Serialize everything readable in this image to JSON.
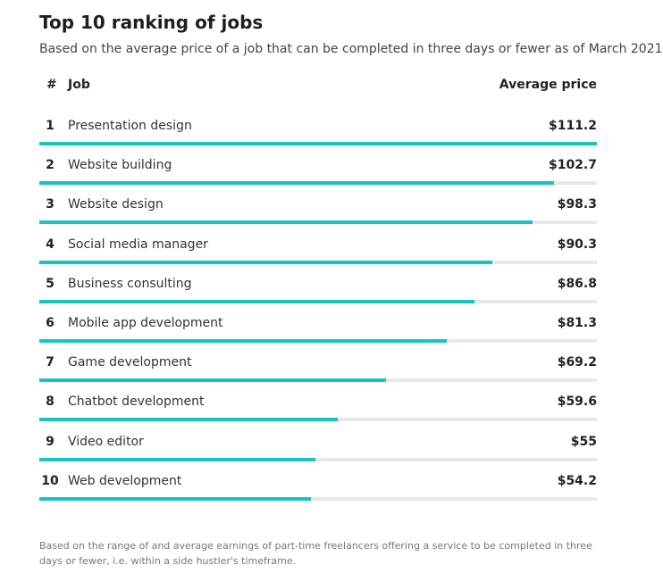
{
  "title": "Top 10 ranking of jobs",
  "subtitle": "Based on the average price of a job that can be completed in three days or fewer as of March 2021",
  "header": {
    "rank": "#",
    "job": "Job",
    "price": "Average price"
  },
  "footnote": "Based on the range of and average earnings of part-time freelancers offering a service to be completed in three days or fewer, i.e. within a side hustler's timeframe.",
  "colors": {
    "bar": "#19c3c4",
    "track": "#e8e8e8"
  },
  "chart_data": {
    "type": "bar",
    "orientation": "horizontal",
    "title": "Top 10 ranking of jobs",
    "subtitle": "Based on the average price of a job that can be completed in three days or fewer as of March 2021",
    "max": 111.2,
    "rows": [
      {
        "rank": "1",
        "job": "Presentation design",
        "value": 111.2,
        "label": "$111.2"
      },
      {
        "rank": "2",
        "job": "Website building",
        "value": 102.7,
        "label": "$102.7"
      },
      {
        "rank": "3",
        "job": "Website design",
        "value": 98.3,
        "label": "$98.3"
      },
      {
        "rank": "4",
        "job": "Social media manager",
        "value": 90.3,
        "label": "$90.3"
      },
      {
        "rank": "5",
        "job": "Business consulting",
        "value": 86.8,
        "label": "$86.8"
      },
      {
        "rank": "6",
        "job": "Mobile app development",
        "value": 81.3,
        "label": "$81.3"
      },
      {
        "rank": "7",
        "job": "Game development",
        "value": 69.2,
        "label": "$69.2"
      },
      {
        "rank": "8",
        "job": "Chatbot development",
        "value": 59.6,
        "label": "$59.6"
      },
      {
        "rank": "9",
        "job": "Video editor",
        "value": 55,
        "label": "$55"
      },
      {
        "rank": "10",
        "job": "Web development",
        "value": 54.2,
        "label": "$54.2"
      }
    ]
  }
}
